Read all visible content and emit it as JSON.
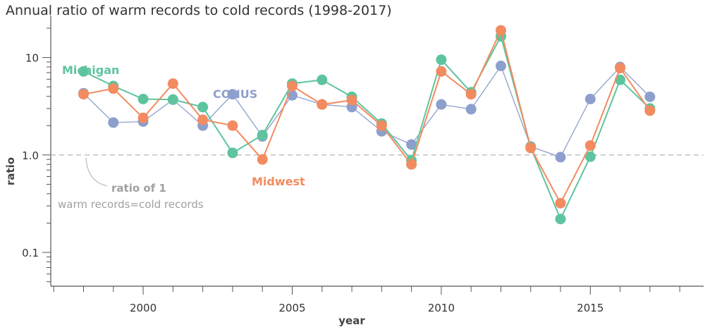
{
  "chart_data": {
    "type": "line",
    "title": "Annual ratio of warm records to cold records (1998-2017)",
    "xlabel": "year",
    "ylabel": "ratio",
    "yscale": "log",
    "ylim": [
      0.045,
      20
    ],
    "xlim": [
      1996.9,
      2018.8
    ],
    "x_tick_labels": [
      "2000",
      "2005",
      "2010",
      "2015"
    ],
    "x_tick_values": [
      2000,
      2005,
      2010,
      2015
    ],
    "y_tick_labels": [
      "0.1",
      "1.0",
      "10"
    ],
    "y_tick_values": [
      0.1,
      1,
      10
    ],
    "reference_line": {
      "value": 1,
      "style": "dashed"
    },
    "annotation": {
      "title": "ratio of 1",
      "text": "warm records=cold records"
    },
    "x": [
      1998,
      1999,
      2000,
      2001,
      2002,
      2003,
      2004,
      2005,
      2006,
      2007,
      2008,
      2009,
      2010,
      2011,
      2012,
      2013,
      2014,
      2015,
      2016,
      2017
    ],
    "series": [
      {
        "name": "CONUS",
        "color": "#8d9fcc",
        "values": [
          4.3,
          2.15,
          2.2,
          3.7,
          2.0,
          4.2,
          1.55,
          4.1,
          3.3,
          3.1,
          1.75,
          1.28,
          3.3,
          2.95,
          8.2,
          1.22,
          0.95,
          3.75,
          8.0,
          3.95
        ]
      },
      {
        "name": "Michigan",
        "color": "#5ec49e",
        "values": [
          7.2,
          5.1,
          3.75,
          3.7,
          3.1,
          1.05,
          1.6,
          5.4,
          5.9,
          3.95,
          2.1,
          0.88,
          9.5,
          4.4,
          16.5,
          1.2,
          0.22,
          0.96,
          5.9,
          3.0
        ]
      },
      {
        "name": "Midwest",
        "color": "#f38b60",
        "values": [
          4.2,
          4.8,
          2.4,
          5.4,
          2.3,
          2.0,
          0.9,
          5.1,
          3.3,
          3.65,
          2.0,
          0.8,
          7.2,
          4.2,
          19.0,
          1.18,
          0.32,
          1.25,
          7.8,
          2.85
        ]
      }
    ]
  }
}
